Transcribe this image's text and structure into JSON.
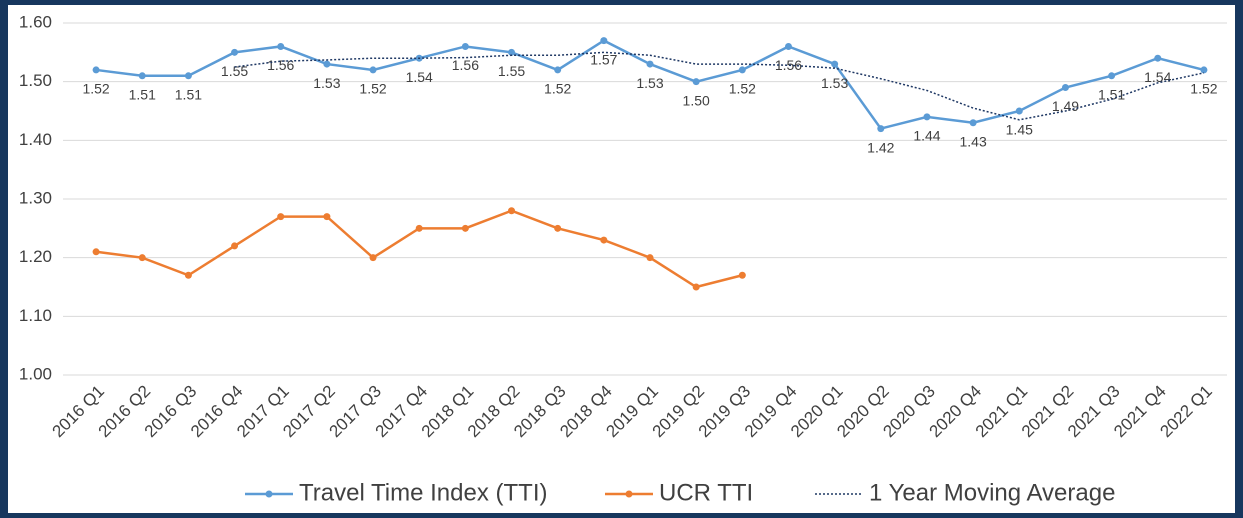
{
  "chart_data": {
    "type": "line",
    "categories": [
      "2016 Q1",
      "2016 Q2",
      "2016 Q3",
      "2016 Q4",
      "2017 Q1",
      "2017 Q2",
      "2017 Q3",
      "2017 Q4",
      "2018 Q1",
      "2018 Q2",
      "2018 Q3",
      "2018 Q4",
      "2019 Q1",
      "2019 Q2",
      "2019 Q3",
      "2019 Q4",
      "2020 Q1",
      "2020 Q2",
      "2020 Q3",
      "2020 Q4",
      "2021 Q1",
      "2021 Q2",
      "2021 Q3",
      "2021 Q4",
      "2022 Q1"
    ],
    "series": [
      {
        "name": "Travel Time Index (TTI)",
        "color": "#5b9bd5",
        "markers": true,
        "line_style": "solid",
        "values": [
          1.52,
          1.51,
          1.51,
          1.55,
          1.56,
          1.53,
          1.52,
          1.54,
          1.56,
          1.55,
          1.52,
          1.57,
          1.53,
          1.5,
          1.52,
          1.56,
          1.53,
          1.42,
          1.44,
          1.43,
          1.45,
          1.49,
          1.51,
          1.54,
          1.52
        ],
        "value_labels": [
          "1.52",
          "1.51",
          "1.51",
          "1.55",
          "1.56",
          "1.53",
          "1.52",
          "1.54",
          "1.56",
          "1.55",
          "1.52",
          "1.57",
          "1.53",
          "1.50",
          "1.52",
          "1.56",
          "1.53",
          "1.42",
          "1.44",
          "1.43",
          "1.45",
          "1.49",
          "1.51",
          "1.54",
          "1.52"
        ]
      },
      {
        "name": "UCR TTI",
        "color": "#ed7d31",
        "markers": true,
        "line_style": "solid",
        "values": [
          1.21,
          1.2,
          1.17,
          1.22,
          1.27,
          1.27,
          1.2,
          1.25,
          1.25,
          1.28,
          1.25,
          1.23,
          1.2,
          1.15,
          1.17,
          null,
          null,
          null,
          null,
          null,
          null,
          null,
          null,
          null,
          null
        ]
      },
      {
        "name": "1 Year Moving Average",
        "color": "#1f3864",
        "markers": false,
        "line_style": "dotted",
        "values": [
          null,
          null,
          null,
          1.525,
          1.535,
          1.537,
          1.54,
          1.54,
          1.541,
          1.545,
          1.545,
          1.55,
          1.545,
          1.53,
          1.53,
          1.528,
          1.523,
          1.505,
          1.485,
          1.455,
          1.435,
          1.45,
          1.47,
          1.498,
          1.515
        ]
      }
    ],
    "ylim": [
      1.0,
      1.6
    ],
    "yticks": [
      {
        "value": 1.0,
        "label": "1.00"
      },
      {
        "value": 1.1,
        "label": "1.10"
      },
      {
        "value": 1.2,
        "label": "1.20"
      },
      {
        "value": 1.3,
        "label": "1.30"
      },
      {
        "value": 1.4,
        "label": "1.40"
      },
      {
        "value": 1.5,
        "label": "1.50"
      },
      {
        "value": 1.6,
        "label": "1.60"
      }
    ],
    "grid": true,
    "legend": "bottom"
  }
}
